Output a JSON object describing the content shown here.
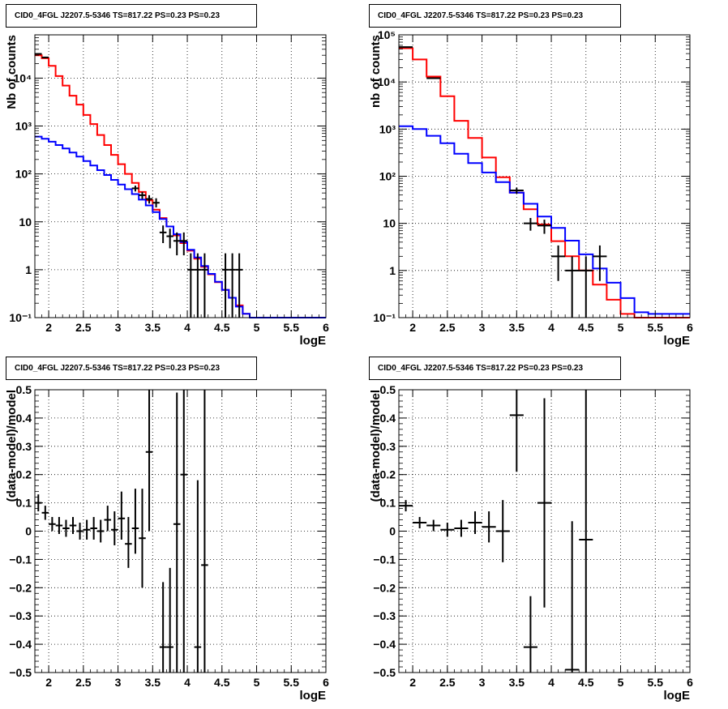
{
  "chart_data": [
    {
      "type": "line",
      "panel": "top-left",
      "title": "CID0_4FGL J2207.5-5346 TS=817.22 PS=0.23 PS=0.23",
      "xlabel": "logE",
      "ylabel": "Nb of counts",
      "xlim": [
        1.8,
        6
      ],
      "ylim": [
        0.1,
        80000
      ],
      "yscale": "log",
      "grid": true,
      "xticks": [
        2,
        2.5,
        3,
        3.5,
        4,
        4.5,
        5,
        5.5,
        6
      ],
      "xtick_labels": [
        "2",
        "2.5",
        "3",
        "3.5",
        "4",
        "4.5",
        "5",
        "5.5",
        "6"
      ],
      "yticks": [
        0.1,
        1,
        10,
        100,
        1000,
        10000
      ],
      "ytick_labels": [
        "10⁻¹",
        "1",
        "10",
        "10²",
        "10³",
        "10⁴"
      ],
      "series": [
        {
          "color": "#ff0000",
          "kind": "step",
          "edges": [
            1.8,
            1.9,
            2.0,
            2.1,
            2.2,
            2.3,
            2.4,
            2.5,
            2.6,
            2.7,
            2.8,
            2.9,
            3.0,
            3.1,
            3.2,
            3.3,
            3.4,
            3.5,
            3.6,
            3.7,
            3.8,
            3.9,
            4.0,
            4.1,
            4.2,
            4.3,
            4.4,
            4.5,
            4.6,
            4.7,
            4.8,
            4.9,
            5.0,
            5.1,
            5.2,
            5.3,
            5.4,
            5.5,
            5.6,
            5.7,
            5.8,
            5.9,
            6.0
          ],
          "values": [
            30000,
            26000,
            18000,
            11000,
            7000,
            4300,
            2800,
            1700,
            1100,
            650,
            400,
            250,
            160,
            100,
            65,
            42,
            28,
            18,
            12,
            8,
            5.2,
            3.6,
            2.5,
            1.7,
            1.15,
            0.8,
            0.55,
            0.38,
            0.26,
            0.18,
            0.12,
            0.1,
            0.1,
            0.1,
            0.1,
            0.1,
            0.1,
            0.1,
            0.1,
            0.1,
            0.1,
            0.1
          ]
        },
        {
          "color": "#0000ff",
          "kind": "step",
          "edges": [
            1.8,
            1.9,
            2.0,
            2.1,
            2.2,
            2.3,
            2.4,
            2.5,
            2.6,
            2.7,
            2.8,
            2.9,
            3.0,
            3.1,
            3.2,
            3.3,
            3.4,
            3.5,
            3.6,
            3.7,
            3.8,
            3.9,
            4.0,
            4.1,
            4.2,
            4.3,
            4.4,
            4.5,
            4.6,
            4.7,
            4.8,
            4.9,
            5.0,
            5.1,
            5.2,
            5.3,
            5.4,
            5.5,
            5.6,
            5.7,
            5.8,
            5.9,
            6.0
          ],
          "values": [
            600,
            540,
            470,
            400,
            340,
            280,
            230,
            185,
            150,
            120,
            95,
            75,
            60,
            48,
            38,
            29,
            22,
            16,
            11.5,
            8,
            5.5,
            3.8,
            2.6,
            1.8,
            1.2,
            0.82,
            0.56,
            0.38,
            0.26,
            0.17,
            0.12,
            0.1,
            0.1,
            0.1,
            0.1,
            0.1,
            0.1,
            0.1,
            0.1,
            0.1,
            0.1,
            0.1
          ]
        },
        {
          "color": "#000000",
          "kind": "errorbar",
          "points": [
            {
              "x": 1.85,
              "y": 32000,
              "xerr": 0.05,
              "ylo": 31000,
              "yhi": 33000
            },
            {
              "x": 1.95,
              "y": 27000,
              "xerr": 0.05,
              "ylo": 26000,
              "yhi": 28000
            },
            {
              "x": 3.25,
              "y": 50,
              "xerr": 0.05,
              "ylo": 43,
              "yhi": 57
            },
            {
              "x": 3.35,
              "y": 36,
              "xerr": 0.05,
              "ylo": 30,
              "yhi": 42
            },
            {
              "x": 3.45,
              "y": 30,
              "xerr": 0.05,
              "ylo": 24,
              "yhi": 36
            },
            {
              "x": 3.55,
              "y": 25,
              "xerr": 0.05,
              "ylo": 20,
              "yhi": 31
            },
            {
              "x": 3.65,
              "y": 6,
              "xerr": 0.05,
              "ylo": 3.6,
              "yhi": 8.4
            },
            {
              "x": 3.75,
              "y": 5,
              "xerr": 0.05,
              "ylo": 2.8,
              "yhi": 7.2
            },
            {
              "x": 3.85,
              "y": 4,
              "xerr": 0.05,
              "ylo": 2.0,
              "yhi": 6.0
            },
            {
              "x": 3.95,
              "y": 4,
              "xerr": 0.05,
              "ylo": 2.0,
              "yhi": 6.0
            },
            {
              "x": 4.05,
              "y": 1,
              "xerr": 0.05,
              "ylo": 0.1,
              "yhi": 2.2
            },
            {
              "x": 4.15,
              "y": 1,
              "xerr": 0.05,
              "ylo": 0.1,
              "yhi": 2.2
            },
            {
              "x": 4.25,
              "y": 1,
              "xerr": 0.05,
              "ylo": 0.1,
              "yhi": 2.2
            },
            {
              "x": 4.55,
              "y": 1,
              "xerr": 0.05,
              "ylo": 0.1,
              "yhi": 2.2
            },
            {
              "x": 4.65,
              "y": 1,
              "xerr": 0.05,
              "ylo": 0.1,
              "yhi": 2.2
            },
            {
              "x": 4.75,
              "y": 1,
              "xerr": 0.05,
              "ylo": 0.1,
              "yhi": 2.2
            }
          ]
        }
      ]
    },
    {
      "type": "line",
      "panel": "top-right",
      "title": "CID0_4FGL J2207.5-5346 TS=817.22 PS=0.23 PS=0.23",
      "xlabel": "logE",
      "ylabel": "nb of counts",
      "xlim": [
        1.8,
        6
      ],
      "ylim": [
        0.1,
        100000
      ],
      "yscale": "log",
      "grid": true,
      "xticks": [
        2,
        2.5,
        3,
        3.5,
        4,
        4.5,
        5,
        5.5,
        6
      ],
      "xtick_labels": [
        "2",
        "2.5",
        "3",
        "3.5",
        "4",
        "4.5",
        "5",
        "5.5",
        "6"
      ],
      "yticks": [
        0.1,
        1,
        10,
        100,
        1000,
        10000,
        100000
      ],
      "ytick_labels": [
        "10⁻¹",
        "1",
        "10",
        "10²",
        "10³",
        "10⁴",
        "10⁵"
      ],
      "series": [
        {
          "color": "#ff0000",
          "kind": "step",
          "edges": [
            1.8,
            2.0,
            2.2,
            2.4,
            2.6,
            2.8,
            3.0,
            3.2,
            3.4,
            3.6,
            3.8,
            4.0,
            4.2,
            4.4,
            4.6,
            4.8,
            5.0,
            5.2,
            5.4,
            5.6,
            5.8,
            6.0
          ],
          "values": [
            52000,
            30000,
            13000,
            5000,
            1500,
            650,
            250,
            95,
            45,
            20,
            9.5,
            4.2,
            2,
            1,
            0.5,
            0.24,
            0.12,
            0.1,
            0.1,
            0.1,
            0.1
          ]
        },
        {
          "color": "#0000ff",
          "kind": "step",
          "edges": [
            1.8,
            2.0,
            2.2,
            2.4,
            2.6,
            2.8,
            3.0,
            3.2,
            3.4,
            3.6,
            3.8,
            4.0,
            4.2,
            4.4,
            4.6,
            4.8,
            5.0,
            5.2,
            5.4,
            5.6,
            5.8,
            6.0
          ],
          "values": [
            1150,
            1000,
            720,
            500,
            300,
            190,
            120,
            75,
            45,
            26,
            14,
            8,
            4.3,
            2.2,
            1.1,
            0.55,
            0.26,
            0.13,
            0.12,
            0.12,
            0.12
          ]
        },
        {
          "color": "#000000",
          "kind": "errorbar",
          "points": [
            {
              "x": 1.9,
              "y": 55000,
              "xerr": 0.1,
              "ylo": 54000,
              "yhi": 56000
            },
            {
              "x": 2.3,
              "y": 12000,
              "xerr": 0.1,
              "ylo": 11700,
              "yhi": 12300
            },
            {
              "x": 3.5,
              "y": 50,
              "xerr": 0.1,
              "ylo": 43,
              "yhi": 57
            },
            {
              "x": 3.7,
              "y": 10,
              "xerr": 0.1,
              "ylo": 7,
              "yhi": 13
            },
            {
              "x": 3.9,
              "y": 9,
              "xerr": 0.1,
              "ylo": 6,
              "yhi": 12
            },
            {
              "x": 4.1,
              "y": 2,
              "xerr": 0.1,
              "ylo": 0.6,
              "yhi": 3.4
            },
            {
              "x": 4.3,
              "y": 1,
              "xerr": 0.1,
              "ylo": 0.1,
              "yhi": 2.0
            },
            {
              "x": 4.5,
              "y": 1,
              "xerr": 0.1,
              "ylo": 0.1,
              "yhi": 2.0
            },
            {
              "x": 4.7,
              "y": 2,
              "xerr": 0.1,
              "ylo": 0.6,
              "yhi": 3.4
            }
          ]
        }
      ]
    },
    {
      "type": "scatter",
      "panel": "bottom-left",
      "title": "CID0_4FGL J2207.5-5346 TS=817.22 PS=0.23 PS=0.23",
      "xlabel": "logE",
      "ylabel": "(data-model)/model",
      "xlim": [
        1.8,
        6
      ],
      "ylim": [
        -0.5,
        0.5
      ],
      "yscale": "linear",
      "grid": true,
      "xticks": [
        2,
        2.5,
        3,
        3.5,
        4,
        4.5,
        5,
        5.5,
        6
      ],
      "xtick_labels": [
        "2",
        "2.5",
        "3",
        "3.5",
        "4",
        "4.5",
        "5",
        "5.5",
        "6"
      ],
      "yticks": [
        -0.5,
        -0.4,
        -0.3,
        -0.2,
        -0.1,
        0,
        0.1,
        0.2,
        0.3,
        0.4,
        0.5
      ],
      "ytick_labels": [
        "−0.5",
        "−0.4",
        "−0.3",
        "−0.2",
        "−0.1",
        "0",
        "0.1",
        "0.2",
        "0.3",
        "0.4",
        "0.5"
      ],
      "series": [
        {
          "color": "#000000",
          "kind": "errorbar",
          "points": [
            {
              "x": 1.85,
              "y": 0.1,
              "xerr": 0.05,
              "ylo": 0.07,
              "yhi": 0.13
            },
            {
              "x": 1.95,
              "y": 0.065,
              "xerr": 0.05,
              "ylo": 0.04,
              "yhi": 0.09
            },
            {
              "x": 2.05,
              "y": 0.025,
              "xerr": 0.05,
              "ylo": 0.0,
              "yhi": 0.05
            },
            {
              "x": 2.15,
              "y": 0.02,
              "xerr": 0.05,
              "ylo": -0.01,
              "yhi": 0.05
            },
            {
              "x": 2.25,
              "y": 0.01,
              "xerr": 0.05,
              "ylo": -0.02,
              "yhi": 0.04
            },
            {
              "x": 2.35,
              "y": 0.02,
              "xerr": 0.05,
              "ylo": -0.01,
              "yhi": 0.05
            },
            {
              "x": 2.45,
              "y": 0.0,
              "xerr": 0.05,
              "ylo": -0.03,
              "yhi": 0.03
            },
            {
              "x": 2.55,
              "y": 0.005,
              "xerr": 0.05,
              "ylo": -0.03,
              "yhi": 0.04
            },
            {
              "x": 2.65,
              "y": 0.01,
              "xerr": 0.05,
              "ylo": -0.03,
              "yhi": 0.05
            },
            {
              "x": 2.75,
              "y": 0.0,
              "xerr": 0.05,
              "ylo": -0.04,
              "yhi": 0.04
            },
            {
              "x": 2.85,
              "y": 0.04,
              "xerr": 0.05,
              "ylo": 0.0,
              "yhi": 0.09
            },
            {
              "x": 2.95,
              "y": 0.005,
              "xerr": 0.05,
              "ylo": -0.05,
              "yhi": 0.07
            },
            {
              "x": 3.05,
              "y": 0.045,
              "xerr": 0.05,
              "ylo": -0.03,
              "yhi": 0.14
            },
            {
              "x": 3.15,
              "y": -0.045,
              "xerr": 0.05,
              "ylo": -0.13,
              "yhi": 0.05
            },
            {
              "x": 3.25,
              "y": 0.01,
              "xerr": 0.05,
              "ylo": -0.08,
              "yhi": 0.15
            },
            {
              "x": 3.35,
              "y": -0.025,
              "xerr": 0.05,
              "ylo": -0.2,
              "yhi": 0.15
            },
            {
              "x": 3.45,
              "y": 0.28,
              "xerr": 0.05,
              "ylo": 0.0,
              "yhi": 0.5
            },
            {
              "x": 3.65,
              "y": -0.41,
              "xerr": 0.05,
              "ylo": -0.5,
              "yhi": -0.18
            },
            {
              "x": 3.75,
              "y": -0.41,
              "xerr": 0.05,
              "ylo": -0.5,
              "yhi": -0.13
            },
            {
              "x": 3.85,
              "y": 0.025,
              "xerr": 0.05,
              "ylo": -0.5,
              "yhi": 0.49
            },
            {
              "x": 3.95,
              "y": 0.2,
              "xerr": 0.05,
              "ylo": -0.5,
              "yhi": 0.5
            },
            {
              "x": 4.15,
              "y": -0.41,
              "xerr": 0.05,
              "ylo": -0.5,
              "yhi": 0.18
            },
            {
              "x": 4.25,
              "y": -0.12,
              "xerr": 0.05,
              "ylo": -0.5,
              "yhi": 0.5
            }
          ]
        }
      ]
    },
    {
      "type": "scatter",
      "panel": "bottom-right",
      "title": "CID0_4FGL J2207.5-5346 TS=817.22 PS=0.23 PS=0.23",
      "xlabel": "logE",
      "ylabel": "(data-model)/model",
      "xlim": [
        1.8,
        6
      ],
      "ylim": [
        -0.5,
        0.5
      ],
      "yscale": "linear",
      "grid": true,
      "xticks": [
        2,
        2.5,
        3,
        3.5,
        4,
        4.5,
        5,
        5.5,
        6
      ],
      "xtick_labels": [
        "2",
        "2.5",
        "3",
        "3.5",
        "4",
        "4.5",
        "5",
        "5.5",
        "6"
      ],
      "yticks": [
        -0.5,
        -0.4,
        -0.3,
        -0.2,
        -0.1,
        0,
        0.1,
        0.2,
        0.3,
        0.4,
        0.5
      ],
      "ytick_labels": [
        "−0.5",
        "−0.4",
        "−0.3",
        "−0.2",
        "−0.1",
        "0",
        "0.1",
        "0.2",
        "0.3",
        "0.4",
        "0.5"
      ],
      "series": [
        {
          "color": "#000000",
          "kind": "errorbar",
          "points": [
            {
              "x": 1.9,
              "y": 0.09,
              "xerr": 0.1,
              "ylo": 0.07,
              "yhi": 0.11
            },
            {
              "x": 2.1,
              "y": 0.03,
              "xerr": 0.1,
              "ylo": 0.01,
              "yhi": 0.05
            },
            {
              "x": 2.3,
              "y": 0.02,
              "xerr": 0.1,
              "ylo": 0.0,
              "yhi": 0.04
            },
            {
              "x": 2.5,
              "y": 0.005,
              "xerr": 0.1,
              "ylo": -0.02,
              "yhi": 0.03
            },
            {
              "x": 2.7,
              "y": 0.01,
              "xerr": 0.1,
              "ylo": -0.02,
              "yhi": 0.04
            },
            {
              "x": 2.9,
              "y": 0.03,
              "xerr": 0.1,
              "ylo": -0.01,
              "yhi": 0.07
            },
            {
              "x": 3.1,
              "y": 0.015,
              "xerr": 0.1,
              "ylo": -0.04,
              "yhi": 0.07
            },
            {
              "x": 3.3,
              "y": 0.0,
              "xerr": 0.1,
              "ylo": -0.11,
              "yhi": 0.11
            },
            {
              "x": 3.5,
              "y": 0.41,
              "xerr": 0.1,
              "ylo": 0.21,
              "yhi": 0.5
            },
            {
              "x": 3.7,
              "y": -0.41,
              "xerr": 0.1,
              "ylo": -0.5,
              "yhi": -0.23
            },
            {
              "x": 3.9,
              "y": 0.1,
              "xerr": 0.1,
              "ylo": -0.27,
              "yhi": 0.47
            },
            {
              "x": 4.3,
              "y": -0.49,
              "xerr": 0.1,
              "ylo": -0.5,
              "yhi": 0.035
            },
            {
              "x": 4.5,
              "y": -0.03,
              "xerr": 0.1,
              "ylo": -0.5,
              "yhi": 0.5
            }
          ]
        }
      ]
    }
  ]
}
